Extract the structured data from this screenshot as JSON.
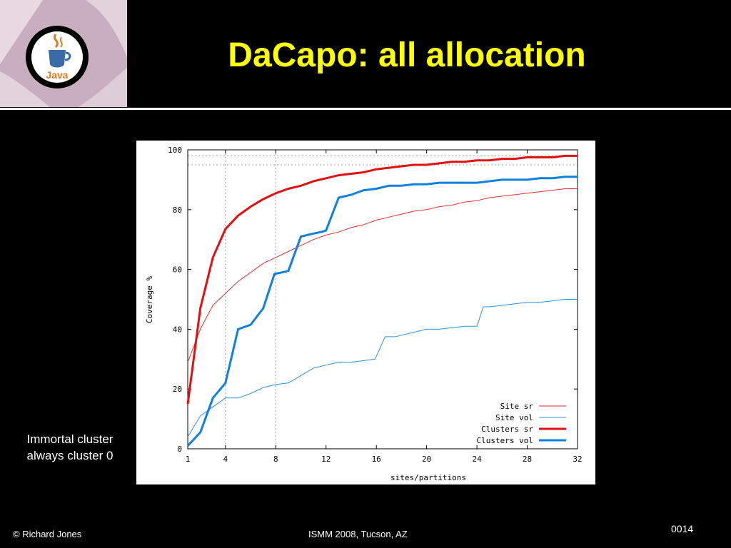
{
  "slide": {
    "title": "DaCapo: all allocation",
    "note_line1": "Immortal cluster",
    "note_line2": "always cluster 0",
    "footer_left": "© Richard Jones",
    "footer_center": "ISMM 2008, Tucson, AZ",
    "footer_right": "0014"
  },
  "logo": {
    "text": "Java",
    "icon": "java-coffee-cup-logo"
  },
  "chart_data": {
    "type": "line",
    "title": "",
    "xlabel": "sites/partitions",
    "ylabel": "Coverage %",
    "xlim": [
      1,
      32
    ],
    "ylim": [
      0,
      100
    ],
    "xticks": [
      1,
      4,
      8,
      12,
      16,
      20,
      24,
      28,
      32
    ],
    "yticks": [
      0,
      20,
      40,
      60,
      80,
      100
    ],
    "reference_lines": {
      "x": [
        4,
        8
      ],
      "y": [
        95,
        98
      ]
    },
    "grid": false,
    "legend_position": "bottom-right",
    "series": [
      {
        "name": "Site sr",
        "color": "#e03030",
        "width": 1,
        "x": [
          1,
          2,
          3,
          4,
          5,
          6,
          7,
          8,
          9,
          10,
          11,
          12,
          13,
          14,
          15,
          16,
          17,
          18,
          19,
          20,
          21,
          22,
          23,
          24,
          25,
          26,
          27,
          28,
          29,
          30,
          31,
          32
        ],
        "y": [
          29,
          40,
          48,
          52,
          56,
          59,
          62,
          64,
          66,
          68,
          70,
          71.5,
          72.5,
          74,
          75,
          76.5,
          77.5,
          78.5,
          79.5,
          80,
          81,
          81.5,
          82.5,
          83,
          84,
          84.5,
          85,
          85.5,
          86,
          86.5,
          87,
          87
        ]
      },
      {
        "name": "Site vol",
        "color": "#3090e0",
        "width": 1,
        "x": [
          1,
          2,
          3,
          4,
          5,
          6,
          7,
          8,
          9,
          10,
          11,
          12,
          13,
          14,
          15,
          15.9,
          16.7,
          17.5,
          18,
          19,
          20,
          21,
          22,
          23,
          24,
          24.5,
          25,
          26,
          27,
          28,
          29,
          30,
          31,
          32
        ],
        "y": [
          4,
          11,
          14,
          17,
          17,
          18.5,
          20.5,
          21.5,
          22,
          24.5,
          27,
          28,
          29,
          29,
          29.5,
          30,
          37.5,
          37.5,
          38,
          39,
          40,
          40,
          40.5,
          41,
          41,
          47.5,
          47.5,
          48,
          48.5,
          49,
          49,
          49.5,
          50,
          50
        ]
      },
      {
        "name": "Clusters sr",
        "color": "#e01010",
        "width": 3,
        "x": [
          1,
          2,
          3,
          4,
          5,
          6,
          7,
          8,
          9,
          10,
          11,
          12,
          13,
          14,
          15,
          16,
          17,
          18,
          19,
          20,
          21,
          22,
          23,
          24,
          25,
          26,
          27,
          28,
          29,
          30,
          31,
          32
        ],
        "y": [
          15,
          47,
          64,
          73.5,
          78,
          81,
          83.5,
          85.5,
          87,
          88,
          89.5,
          90.5,
          91.5,
          92,
          92.5,
          93.5,
          94,
          94.5,
          95,
          95,
          95.5,
          96,
          96,
          96.5,
          96.5,
          97,
          97,
          97.5,
          97.5,
          97.5,
          98,
          98
        ]
      },
      {
        "name": "Clusters vol",
        "color": "#1080e0",
        "width": 3,
        "x": [
          1,
          2,
          3,
          4,
          5,
          6,
          7,
          7.9,
          8.5,
          9,
          10,
          11,
          11.6,
          12,
          13,
          14,
          15,
          16,
          17,
          18,
          19,
          20,
          21,
          22,
          23,
          24,
          25,
          26,
          27,
          28,
          29,
          30,
          31,
          32
        ],
        "y": [
          1,
          5.5,
          17,
          22,
          40,
          41.5,
          47,
          58.5,
          59,
          59.5,
          71,
          72,
          72.5,
          73,
          84,
          85,
          86.5,
          87,
          88,
          88,
          88.5,
          88.5,
          89,
          89,
          89,
          89,
          89.5,
          90,
          90,
          90,
          90.5,
          90.5,
          91,
          91
        ]
      }
    ]
  }
}
